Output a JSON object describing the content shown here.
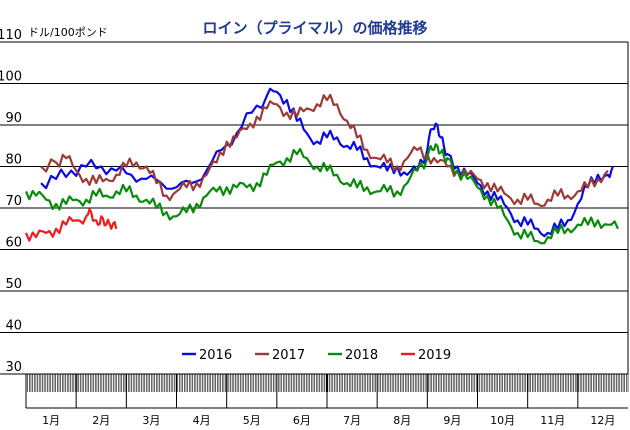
{
  "chart_data": {
    "type": "line",
    "title": "ロイン（プライマル）の価格推移",
    "ylabel": "ドル/100ポンド",
    "ylim": [
      30,
      110
    ],
    "yticks": [
      30,
      40,
      50,
      60,
      70,
      80,
      90,
      100,
      110
    ],
    "grid": true,
    "legend_position": "inside-bottom-center",
    "months": [
      "1月",
      "2月",
      "3月",
      "4月",
      "5月",
      "6月",
      "7月",
      "8月",
      "9月",
      "10月",
      "11月",
      "12月"
    ],
    "series": [
      {
        "name": "2016",
        "color": "#0a0ae6",
        "points": [
          [
            0.3,
            76
          ],
          [
            0.6,
            77
          ],
          [
            0.9,
            79
          ],
          [
            1.2,
            80
          ],
          [
            1.5,
            80
          ],
          [
            1.8,
            79
          ],
          [
            2.1,
            78
          ],
          [
            2.4,
            77
          ],
          [
            2.7,
            76
          ],
          [
            3.0,
            75
          ],
          [
            3.3,
            76
          ],
          [
            3.6,
            79
          ],
          [
            3.9,
            84
          ],
          [
            4.2,
            88
          ],
          [
            4.5,
            93
          ],
          [
            4.8,
            97
          ],
          [
            5.0,
            98
          ],
          [
            5.2,
            96
          ],
          [
            5.4,
            91
          ],
          [
            5.6,
            88
          ],
          [
            5.8,
            86
          ],
          [
            6.0,
            87
          ],
          [
            6.2,
            87
          ],
          [
            6.4,
            85
          ],
          [
            6.6,
            84
          ],
          [
            6.8,
            82
          ],
          [
            7.0,
            80
          ],
          [
            7.2,
            79
          ],
          [
            7.4,
            80
          ],
          [
            7.6,
            78
          ],
          [
            7.8,
            79
          ],
          [
            8.0,
            84
          ],
          [
            8.1,
            89
          ],
          [
            8.2,
            90
          ],
          [
            8.3,
            87
          ],
          [
            8.4,
            83
          ],
          [
            8.6,
            80
          ],
          [
            8.8,
            78
          ],
          [
            9.0,
            76
          ],
          [
            9.2,
            74
          ],
          [
            9.4,
            72
          ],
          [
            9.6,
            70
          ],
          [
            9.8,
            67
          ],
          [
            10.0,
            66
          ],
          [
            10.2,
            65
          ],
          [
            10.4,
            64
          ],
          [
            10.6,
            65
          ],
          [
            10.8,
            67
          ],
          [
            11.0,
            71
          ],
          [
            11.2,
            75
          ],
          [
            11.4,
            78
          ],
          [
            11.6,
            78
          ],
          [
            11.7,
            80
          ]
        ]
      },
      {
        "name": "2017",
        "color": "#9b3b36",
        "points": [
          [
            0.3,
            80
          ],
          [
            0.6,
            81
          ],
          [
            0.8,
            82
          ],
          [
            1.0,
            79
          ],
          [
            1.2,
            77
          ],
          [
            1.4,
            76
          ],
          [
            1.6,
            77
          ],
          [
            1.8,
            78
          ],
          [
            2.0,
            80
          ],
          [
            2.2,
            81
          ],
          [
            2.4,
            80
          ],
          [
            2.6,
            76
          ],
          [
            2.8,
            73
          ],
          [
            3.0,
            74
          ],
          [
            3.2,
            75
          ],
          [
            3.4,
            76
          ],
          [
            3.6,
            78
          ],
          [
            3.8,
            81
          ],
          [
            4.0,
            86
          ],
          [
            4.2,
            87
          ],
          [
            4.4,
            89
          ],
          [
            4.6,
            92
          ],
          [
            4.8,
            94
          ],
          [
            5.0,
            95
          ],
          [
            5.2,
            93
          ],
          [
            5.4,
            92
          ],
          [
            5.6,
            94
          ],
          [
            5.8,
            95
          ],
          [
            6.0,
            96
          ],
          [
            6.2,
            95
          ],
          [
            6.4,
            91
          ],
          [
            6.6,
            87
          ],
          [
            6.8,
            84
          ],
          [
            7.0,
            82
          ],
          [
            7.2,
            81
          ],
          [
            7.4,
            80
          ],
          [
            7.6,
            82
          ],
          [
            7.8,
            84
          ],
          [
            8.0,
            83
          ],
          [
            8.2,
            81
          ],
          [
            8.4,
            80
          ],
          [
            8.6,
            79
          ],
          [
            8.8,
            78
          ],
          [
            9.0,
            77
          ],
          [
            9.2,
            76
          ],
          [
            9.4,
            74
          ],
          [
            9.6,
            73
          ],
          [
            9.8,
            72
          ],
          [
            10.0,
            72
          ],
          [
            10.2,
            71
          ],
          [
            10.4,
            72
          ],
          [
            10.6,
            73
          ],
          [
            10.8,
            73
          ],
          [
            11.0,
            74
          ],
          [
            11.2,
            75
          ],
          [
            11.4,
            77
          ],
          [
            11.6,
            79
          ]
        ]
      },
      {
        "name": "2018",
        "color": "#0a8a0a",
        "points": [
          [
            0.0,
            74
          ],
          [
            0.2,
            73
          ],
          [
            0.4,
            72
          ],
          [
            0.6,
            71
          ],
          [
            0.8,
            71
          ],
          [
            1.0,
            72
          ],
          [
            1.2,
            72
          ],
          [
            1.4,
            73
          ],
          [
            1.6,
            73
          ],
          [
            1.8,
            74
          ],
          [
            2.0,
            74
          ],
          [
            2.2,
            73
          ],
          [
            2.4,
            72
          ],
          [
            2.6,
            70
          ],
          [
            2.8,
            69
          ],
          [
            3.0,
            68
          ],
          [
            3.2,
            69
          ],
          [
            3.4,
            71
          ],
          [
            3.6,
            73
          ],
          [
            3.8,
            74
          ],
          [
            4.0,
            75
          ],
          [
            4.2,
            75
          ],
          [
            4.4,
            75
          ],
          [
            4.6,
            76
          ],
          [
            4.8,
            78
          ],
          [
            5.0,
            81
          ],
          [
            5.2,
            82
          ],
          [
            5.4,
            83
          ],
          [
            5.6,
            82
          ],
          [
            5.8,
            80
          ],
          [
            6.0,
            79
          ],
          [
            6.2,
            78
          ],
          [
            6.4,
            76
          ],
          [
            6.6,
            75
          ],
          [
            6.8,
            75
          ],
          [
            7.0,
            74
          ],
          [
            7.2,
            74
          ],
          [
            7.4,
            74
          ],
          [
            7.6,
            76
          ],
          [
            7.8,
            79
          ],
          [
            8.0,
            82
          ],
          [
            8.1,
            84
          ],
          [
            8.2,
            85
          ],
          [
            8.3,
            84
          ],
          [
            8.4,
            82
          ],
          [
            8.6,
            79
          ],
          [
            8.8,
            77
          ],
          [
            9.0,
            75
          ],
          [
            9.2,
            73
          ],
          [
            9.4,
            70
          ],
          [
            9.6,
            67
          ],
          [
            9.8,
            64
          ],
          [
            10.0,
            63
          ],
          [
            10.2,
            62
          ],
          [
            10.4,
            63
          ],
          [
            10.6,
            64
          ],
          [
            10.8,
            65
          ],
          [
            11.0,
            66
          ],
          [
            11.2,
            66
          ],
          [
            11.4,
            67
          ],
          [
            11.6,
            66
          ],
          [
            11.8,
            65
          ]
        ]
      },
      {
        "name": "2019",
        "color": "#ee1c1c",
        "points": [
          [
            0.0,
            64
          ],
          [
            0.2,
            63
          ],
          [
            0.4,
            64
          ],
          [
            0.6,
            65
          ],
          [
            0.8,
            66
          ],
          [
            1.0,
            67
          ],
          [
            1.2,
            68
          ],
          [
            1.3,
            69
          ],
          [
            1.4,
            67
          ],
          [
            1.5,
            68
          ],
          [
            1.6,
            66
          ],
          [
            1.7,
            65
          ],
          [
            1.8,
            65
          ]
        ]
      }
    ]
  }
}
